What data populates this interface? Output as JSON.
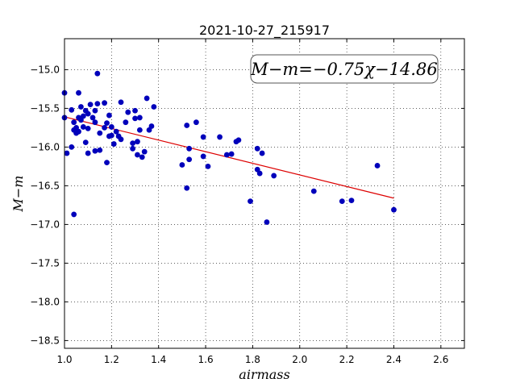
{
  "chart_data": {
    "type": "scatter",
    "title": "2021-10-27_215917",
    "xlabel": "airmass",
    "ylabel": "M−m",
    "xlim": [
      1.0,
      2.7
    ],
    "ylim": [
      -18.6,
      -14.6
    ],
    "y_inverted": true,
    "grid": true,
    "grid_style": "dotted",
    "x_ticks": [
      1.0,
      1.2,
      1.4,
      1.6,
      1.8,
      2.0,
      2.2,
      2.4,
      2.6
    ],
    "x_tick_labels": [
      "1.0",
      "1.2",
      "1.4",
      "1.6",
      "1.8",
      "2.0",
      "2.2",
      "2.4",
      "2.6"
    ],
    "y_ticks": [
      -15.0,
      -15.5,
      -16.0,
      -16.5,
      -17.0,
      -17.5,
      -18.0,
      -18.5
    ],
    "y_tick_labels": [
      "−15.0",
      "−15.5",
      "−16.0",
      "−16.5",
      "−17.0",
      "−17.5",
      "−18.0",
      "−18.5"
    ],
    "annotation": {
      "text": "M−m=−0.75χ−14.86",
      "position": "top-right"
    },
    "fit_line": {
      "slope": -0.75,
      "intercept": -14.86,
      "x_range": [
        1.0,
        2.4
      ],
      "color": "#dd0000"
    },
    "point_color": "#0000bb",
    "points": [
      [
        1.0,
        -15.3
      ],
      [
        1.0,
        -15.62
      ],
      [
        1.01,
        -16.08
      ],
      [
        1.03,
        -15.52
      ],
      [
        1.03,
        -16.0
      ],
      [
        1.04,
        -16.87
      ],
      [
        1.04,
        -15.68
      ],
      [
        1.04,
        -15.78
      ],
      [
        1.05,
        -15.82
      ],
      [
        1.05,
        -15.75
      ],
      [
        1.06,
        -15.3
      ],
      [
        1.06,
        -15.8
      ],
      [
        1.06,
        -15.62
      ],
      [
        1.07,
        -15.65
      ],
      [
        1.07,
        -15.48
      ],
      [
        1.08,
        -15.6
      ],
      [
        1.08,
        -15.74
      ],
      [
        1.09,
        -15.94
      ],
      [
        1.09,
        -15.53
      ],
      [
        1.1,
        -15.57
      ],
      [
        1.1,
        -15.76
      ],
      [
        1.1,
        -16.08
      ],
      [
        1.11,
        -15.45
      ],
      [
        1.12,
        -15.62
      ],
      [
        1.13,
        -15.53
      ],
      [
        1.13,
        -15.68
      ],
      [
        1.13,
        -16.05
      ],
      [
        1.14,
        -15.05
      ],
      [
        1.14,
        -15.44
      ],
      [
        1.15,
        -15.82
      ],
      [
        1.15,
        -16.04
      ],
      [
        1.17,
        -15.43
      ],
      [
        1.17,
        -15.75
      ],
      [
        1.18,
        -15.69
      ],
      [
        1.18,
        -16.2
      ],
      [
        1.19,
        -15.59
      ],
      [
        1.19,
        -15.86
      ],
      [
        1.2,
        -15.74
      ],
      [
        1.2,
        -15.85
      ],
      [
        1.21,
        -15.96
      ],
      [
        1.22,
        -15.8
      ],
      [
        1.23,
        -15.86
      ],
      [
        1.24,
        -15.42
      ],
      [
        1.24,
        -15.9
      ],
      [
        1.26,
        -15.68
      ],
      [
        1.27,
        -15.55
      ],
      [
        1.29,
        -15.95
      ],
      [
        1.29,
        -16.02
      ],
      [
        1.3,
        -15.53
      ],
      [
        1.3,
        -15.63
      ],
      [
        1.31,
        -15.93
      ],
      [
        1.31,
        -16.1
      ],
      [
        1.32,
        -15.78
      ],
      [
        1.32,
        -15.62
      ],
      [
        1.33,
        -16.13
      ],
      [
        1.34,
        -16.06
      ],
      [
        1.35,
        -15.37
      ],
      [
        1.36,
        -15.78
      ],
      [
        1.37,
        -15.73
      ],
      [
        1.38,
        -15.48
      ],
      [
        1.5,
        -16.23
      ],
      [
        1.52,
        -15.72
      ],
      [
        1.52,
        -16.53
      ],
      [
        1.53,
        -16.02
      ],
      [
        1.53,
        -16.16
      ],
      [
        1.56,
        -15.68
      ],
      [
        1.59,
        -15.87
      ],
      [
        1.59,
        -16.12
      ],
      [
        1.61,
        -16.25
      ],
      [
        1.66,
        -15.87
      ],
      [
        1.69,
        -16.1
      ],
      [
        1.71,
        -16.09
      ],
      [
        1.73,
        -15.93
      ],
      [
        1.74,
        -15.91
      ],
      [
        1.79,
        -16.7
      ],
      [
        1.82,
        -16.02
      ],
      [
        1.82,
        -16.29
      ],
      [
        1.83,
        -16.34
      ],
      [
        1.84,
        -16.08
      ],
      [
        1.86,
        -16.97
      ],
      [
        1.89,
        -16.37
      ],
      [
        2.06,
        -16.57
      ],
      [
        2.18,
        -16.7
      ],
      [
        2.22,
        -16.69
      ],
      [
        2.33,
        -16.24
      ],
      [
        2.4,
        -16.81
      ]
    ]
  }
}
